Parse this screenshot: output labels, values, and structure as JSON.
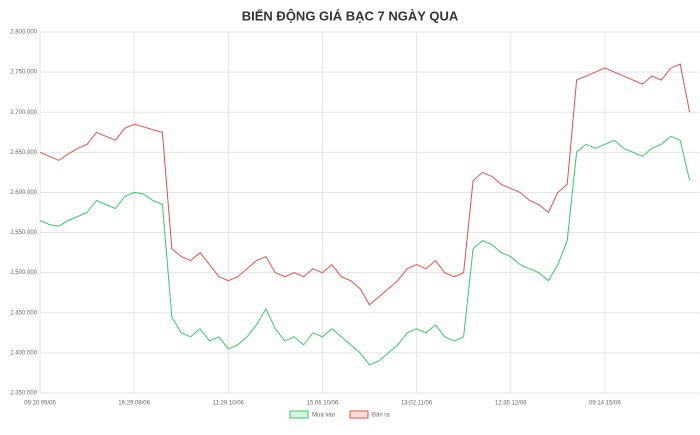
{
  "chart_data": {
    "type": "line",
    "title": "BIẾN ĐỘNG GIÁ BẠC 7 NGÀY QUA",
    "categories": [
      "09:20 09/06",
      null,
      null,
      null,
      null,
      null,
      null,
      null,
      null,
      null,
      "16:29 09/06",
      null,
      null,
      null,
      null,
      null,
      null,
      null,
      null,
      null,
      "11:29 10/06",
      null,
      null,
      null,
      null,
      null,
      null,
      null,
      null,
      null,
      "15:06 10/06",
      null,
      null,
      null,
      null,
      null,
      null,
      null,
      null,
      null,
      "13:02 11/06",
      null,
      null,
      null,
      null,
      null,
      null,
      null,
      null,
      null,
      "12:35 12/06",
      null,
      null,
      null,
      null,
      null,
      null,
      null,
      null,
      null,
      "09:14 15/06",
      null,
      null,
      null,
      null,
      null,
      null,
      null,
      null,
      null
    ],
    "series": [
      {
        "name": "Mua vào",
        "color": "#3ec46d",
        "values": [
          2565000,
          2560000,
          2558000,
          2565000,
          2570000,
          2575000,
          2590000,
          2585000,
          2580000,
          2595000,
          2600000,
          2598000,
          2590000,
          2585000,
          2445000,
          2425000,
          2420000,
          2430000,
          2415000,
          2420000,
          2405000,
          2410000,
          2420000,
          2435000,
          2455000,
          2430000,
          2415000,
          2420000,
          2410000,
          2425000,
          2420000,
          2430000,
          2420000,
          2410000,
          2400000,
          2385000,
          2390000,
          2400000,
          2410000,
          2425000,
          2430000,
          2425000,
          2435000,
          2420000,
          2415000,
          2420000,
          2530000,
          2540000,
          2535000,
          2525000,
          2520000,
          2510000,
          2505000,
          2500000,
          2490000,
          2510000,
          2540000,
          2650000,
          2660000,
          2655000,
          2660000,
          2665000,
          2655000,
          2650000,
          2645000,
          2655000,
          2660000,
          2670000,
          2665000,
          2615000
        ]
      },
      {
        "name": "Bán ra",
        "color": "#d9534f",
        "values": [
          2650000,
          2645000,
          2640000,
          2648000,
          2655000,
          2660000,
          2675000,
          2670000,
          2665000,
          2680000,
          2685000,
          2682000,
          2678000,
          2675000,
          2530000,
          2520000,
          2515000,
          2525000,
          2510000,
          2495000,
          2490000,
          2495000,
          2505000,
          2515000,
          2520000,
          2500000,
          2495000,
          2500000,
          2495000,
          2505000,
          2500000,
          2510000,
          2495000,
          2490000,
          2480000,
          2460000,
          2470000,
          2480000,
          2490000,
          2505000,
          2510000,
          2505000,
          2515000,
          2500000,
          2495000,
          2500000,
          2615000,
          2625000,
          2620000,
          2610000,
          2605000,
          2600000,
          2590000,
          2585000,
          2575000,
          2600000,
          2610000,
          2740000,
          2745000,
          2750000,
          2755000,
          2750000,
          2745000,
          2740000,
          2735000,
          2745000,
          2740000,
          2755000,
          2760000,
          2700000
        ]
      }
    ],
    "ylim": [
      2350000,
      2800000
    ],
    "yticks": [
      {
        "value": 2350000,
        "label": "2.350.000"
      },
      {
        "value": 2400000,
        "label": "2.400.000"
      },
      {
        "value": 2450000,
        "label": "2.450.000"
      },
      {
        "value": 2500000,
        "label": "2.500.000"
      },
      {
        "value": 2550000,
        "label": "2.550.000"
      },
      {
        "value": 2600000,
        "label": "2.600.000"
      },
      {
        "value": 2650000,
        "label": "2.650.000"
      },
      {
        "value": 2700000,
        "label": "2.700.000"
      },
      {
        "value": 2750000,
        "label": "2.750.000"
      },
      {
        "value": 2800000,
        "label": "2.800.000"
      }
    ],
    "grid": true
  }
}
